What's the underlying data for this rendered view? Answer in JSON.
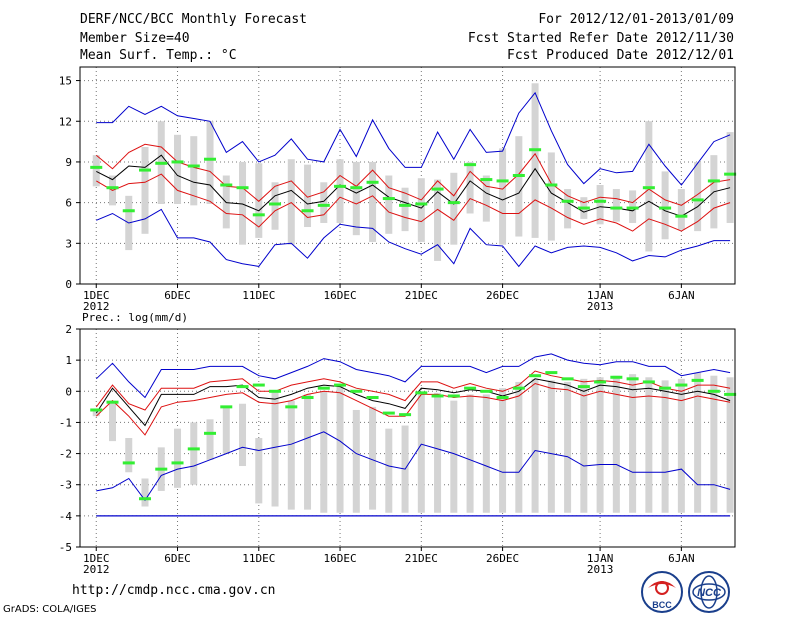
{
  "header": {
    "title": "DERF/NCC/BCC Monthly Forecast",
    "member_size": "Member Size=40",
    "variable": "Mean Surf. Temp.: °C",
    "period": "For 2012/12/01-2013/01/09",
    "started": "Fcst Started Refer Date 2012/11/30",
    "produced": "Fcst Produced Date 2012/12/01"
  },
  "footer": {
    "url": "http://cmdp.ncc.cma.gov.cn",
    "credit": "GrADS: COLA/IGES",
    "logo_bcc": "BCC",
    "logo_ncc": "NCC"
  },
  "colors": {
    "box": "#d4d4d4",
    "median": "#000000",
    "quartile": "#dd1111",
    "extreme": "#0000cc",
    "obs": "#33ee33",
    "grid": "#777777"
  },
  "chart_data": [
    {
      "type": "line",
      "title": "Mean Surf. Temp.: °C",
      "ylim": [
        0,
        16
      ],
      "yticks": [
        0,
        3,
        6,
        9,
        12,
        15
      ],
      "xticks": [
        {
          "day": 1,
          "label": "1DEC",
          "sub": "2012"
        },
        {
          "day": 6,
          "label": "6DEC",
          "sub": ""
        },
        {
          "day": 11,
          "label": "11DEC",
          "sub": ""
        },
        {
          "day": 16,
          "label": "16DEC",
          "sub": ""
        },
        {
          "day": 21,
          "label": "21DEC",
          "sub": ""
        },
        {
          "day": 26,
          "label": "26DEC",
          "sub": ""
        },
        {
          "day": 32,
          "label": "1JAN",
          "sub": "2013"
        },
        {
          "day": 37,
          "label": "6JAN",
          "sub": ""
        }
      ],
      "days": [
        1,
        2,
        3,
        4,
        5,
        6,
        7,
        8,
        9,
        10,
        11,
        12,
        13,
        14,
        15,
        16,
        17,
        18,
        19,
        20,
        21,
        22,
        23,
        24,
        25,
        26,
        27,
        28,
        29,
        30,
        31,
        32,
        33,
        34,
        35,
        36,
        37,
        38,
        39,
        40
      ],
      "max": [
        11.9,
        11.9,
        13.1,
        12.5,
        13.1,
        12.4,
        12.2,
        12.0,
        9.7,
        10.5,
        9.0,
        9.5,
        10.7,
        9.2,
        9.0,
        11.4,
        9.4,
        12.1,
        10.0,
        8.6,
        8.6,
        11.2,
        9.2,
        11.4,
        9.7,
        9.8,
        12.6,
        14.1,
        11.3,
        8.8,
        7.4,
        8.5,
        8.2,
        8.3,
        10.3,
        8.7,
        7.3,
        8.9,
        10.5,
        11.0
      ],
      "upper": [
        9.5,
        8.5,
        9.7,
        10.3,
        10.1,
        9.0,
        8.6,
        8.3,
        7.2,
        7.1,
        6.1,
        7.2,
        7.6,
        6.4,
        6.8,
        8.0,
        7.2,
        8.4,
        7.1,
        6.7,
        6.2,
        7.6,
        6.5,
        8.3,
        7.2,
        7.0,
        8.1,
        9.6,
        7.4,
        6.5,
        6.0,
        6.4,
        6.3,
        6.0,
        7.0,
        6.2,
        5.8,
        6.6,
        7.5,
        7.7
      ],
      "median": [
        8.3,
        7.7,
        8.7,
        8.6,
        9.5,
        8.0,
        7.5,
        7.3,
        6.0,
        5.9,
        5.4,
        6.5,
        6.9,
        5.9,
        6.1,
        7.3,
        6.7,
        7.3,
        6.4,
        6.0,
        5.6,
        6.8,
        5.9,
        7.6,
        6.7,
        6.2,
        6.7,
        8.5,
        6.7,
        6.0,
        5.3,
        5.7,
        5.6,
        5.4,
        6.1,
        5.4,
        5.0,
        5.7,
        6.8,
        7.1
      ],
      "lower": [
        7.6,
        6.9,
        7.4,
        7.5,
        8.1,
        6.9,
        6.5,
        6.1,
        5.2,
        5.1,
        4.2,
        5.4,
        6.0,
        4.9,
        5.1,
        6.4,
        5.9,
        6.5,
        5.3,
        4.9,
        4.6,
        5.5,
        4.7,
        6.3,
        5.8,
        5.2,
        5.2,
        6.2,
        5.6,
        4.9,
        4.4,
        4.8,
        4.5,
        3.9,
        4.8,
        4.4,
        3.9,
        4.6,
        5.6,
        6.0
      ],
      "min": [
        4.7,
        5.2,
        4.5,
        4.8,
        5.5,
        3.4,
        3.4,
        3.1,
        1.8,
        1.5,
        1.3,
        2.9,
        3.0,
        1.9,
        3.4,
        4.4,
        4.2,
        4.1,
        3.1,
        2.6,
        2.2,
        2.9,
        1.5,
        4.1,
        2.9,
        2.8,
        1.3,
        2.8,
        2.3,
        2.7,
        2.8,
        2.7,
        2.3,
        1.7,
        2.1,
        2.0,
        2.5,
        2.8,
        3.2,
        3.2
      ],
      "box_top": [
        9.5,
        8.0,
        6.5,
        10.1,
        12.0,
        11.0,
        10.9,
        12.0,
        8.0,
        9.0,
        8.9,
        7.5,
        9.2,
        8.8,
        7.5,
        9.2,
        9.0,
        9.0,
        8.0,
        7.1,
        7.8,
        7.7,
        8.2,
        9.0,
        8.0,
        10.0,
        10.9,
        14.8,
        9.7,
        7.0,
        6.4,
        7.3,
        7.0,
        6.9,
        12.0,
        8.3,
        7.0,
        9.0,
        9.5,
        11.2
      ],
      "box_bottom": [
        7.2,
        5.8,
        2.5,
        3.7,
        5.9,
        5.9,
        5.8,
        5.9,
        4.1,
        2.9,
        3.4,
        4.0,
        2.9,
        4.2,
        4.5,
        4.5,
        3.6,
        3.1,
        3.7,
        3.9,
        3.1,
        1.7,
        2.9,
        5.2,
        4.6,
        2.9,
        3.5,
        3.4,
        3.2,
        4.1,
        4.8,
        4.4,
        4.6,
        4.5,
        2.4,
        3.3,
        4.0,
        3.9,
        4.1,
        4.5
      ],
      "obs": [
        8.6,
        7.1,
        5.4,
        8.4,
        8.9,
        9.0,
        8.7,
        9.2,
        7.3,
        7.1,
        5.1,
        5.9,
        null,
        5.4,
        5.8,
        7.2,
        7.1,
        7.5,
        6.3,
        5.8,
        5.9,
        7.0,
        6.0,
        8.8,
        7.7,
        7.6,
        8.0,
        9.9,
        7.3,
        6.1,
        5.6,
        6.1,
        5.6,
        5.6,
        7.1,
        5.6,
        5.0,
        6.2,
        7.6,
        8.1
      ]
    },
    {
      "type": "line",
      "title": "Prec.: log(mm/d)",
      "ylim": [
        -5,
        2
      ],
      "yticks": [
        -5,
        -4,
        -3,
        -2,
        -1,
        0,
        1,
        2
      ],
      "xticks": [
        {
          "day": 1,
          "label": "1DEC",
          "sub": "2012"
        },
        {
          "day": 6,
          "label": "6DEC",
          "sub": ""
        },
        {
          "day": 11,
          "label": "11DEC",
          "sub": ""
        },
        {
          "day": 16,
          "label": "16DEC",
          "sub": ""
        },
        {
          "day": 21,
          "label": "21DEC",
          "sub": ""
        },
        {
          "day": 26,
          "label": "26DEC",
          "sub": ""
        },
        {
          "day": 32,
          "label": "1JAN",
          "sub": "2013"
        },
        {
          "day": 37,
          "label": "6JAN",
          "sub": ""
        }
      ],
      "days": [
        1,
        2,
        3,
        4,
        5,
        6,
        7,
        8,
        9,
        10,
        11,
        12,
        13,
        14,
        15,
        16,
        17,
        18,
        19,
        20,
        21,
        22,
        23,
        24,
        25,
        26,
        27,
        28,
        29,
        30,
        31,
        32,
        33,
        34,
        35,
        36,
        37,
        38,
        39,
        40
      ],
      "max": [
        0.4,
        0.9,
        0.3,
        -0.2,
        0.7,
        0.7,
        0.7,
        0.8,
        0.8,
        0.8,
        0.5,
        0.4,
        0.6,
        0.8,
        1.05,
        0.95,
        0.7,
        0.6,
        0.5,
        0.3,
        0.8,
        0.8,
        0.8,
        0.8,
        0.6,
        0.8,
        0.8,
        1.1,
        1.2,
        1.0,
        0.9,
        0.85,
        0.95,
        0.95,
        0.8,
        0.8,
        0.5,
        0.6,
        0.7,
        0.6
      ],
      "upper": [
        -0.5,
        0.2,
        -0.4,
        -0.6,
        0.1,
        0.1,
        0.1,
        0.3,
        0.35,
        0.4,
        0.0,
        0.0,
        0.2,
        0.3,
        0.4,
        0.3,
        0.1,
        0.0,
        -0.1,
        -0.3,
        0.3,
        0.3,
        0.1,
        0.25,
        0.1,
        0.0,
        0.2,
        0.65,
        0.5,
        0.4,
        0.3,
        0.35,
        0.3,
        0.2,
        0.3,
        0.1,
        0.0,
        0.2,
        0.2,
        0.1
      ],
      "median": [
        -0.7,
        0.1,
        -0.5,
        -1.1,
        -0.1,
        -0.1,
        -0.1,
        0.15,
        0.15,
        0.2,
        -0.2,
        -0.25,
        -0.1,
        0.1,
        0.2,
        0.15,
        -0.1,
        -0.3,
        -0.4,
        -0.55,
        0.1,
        0.05,
        -0.05,
        0.05,
        0.0,
        -0.15,
        0.0,
        0.4,
        0.3,
        0.2,
        0.0,
        0.2,
        0.15,
        0.05,
        0.1,
        0.0,
        -0.1,
        0.0,
        -0.1,
        -0.3
      ],
      "lower": [
        -0.8,
        -0.3,
        -0.8,
        -1.4,
        -0.5,
        -0.35,
        -0.3,
        -0.2,
        -0.1,
        -0.05,
        -0.35,
        -0.4,
        -0.3,
        -0.1,
        0.0,
        -0.05,
        -0.3,
        -0.55,
        -0.8,
        -0.8,
        -0.1,
        -0.1,
        -0.2,
        -0.15,
        -0.2,
        -0.3,
        -0.15,
        0.25,
        0.1,
        0.05,
        -0.15,
        0.0,
        -0.1,
        -0.2,
        -0.15,
        -0.2,
        -0.3,
        -0.15,
        -0.25,
        -0.35
      ],
      "min": [
        -3.2,
        -3.1,
        -2.8,
        -3.5,
        -2.7,
        -2.5,
        -2.4,
        -2.2,
        -2.0,
        -1.8,
        -1.9,
        -1.8,
        -1.7,
        -1.5,
        -1.3,
        -1.6,
        -2.0,
        -2.2,
        -2.4,
        -2.5,
        -1.7,
        -1.85,
        -2.0,
        -2.2,
        -2.4,
        -2.6,
        -2.6,
        -1.9,
        -2.0,
        -2.1,
        -2.4,
        -2.35,
        -2.35,
        -2.6,
        -2.6,
        -2.6,
        -2.5,
        -3.0,
        -3.0,
        -3.15
      ],
      "box_top": [
        -0.6,
        -0.3,
        -1.5,
        -2.8,
        -1.8,
        -1.2,
        -1.0,
        -0.9,
        -0.5,
        -0.4,
        -1.5,
        0.0,
        -0.3,
        -0.1,
        0.0,
        0.2,
        -0.6,
        -0.5,
        -1.2,
        -1.1,
        -0.1,
        -0.05,
        -0.3,
        -0.1,
        -0.1,
        0.1,
        0.3,
        0.4,
        0.35,
        0.3,
        0.4,
        0.45,
        0.5,
        0.55,
        0.45,
        0.35,
        0.4,
        0.6,
        0.5,
        0.45
      ],
      "box_bottom": [
        -0.8,
        -1.6,
        -2.6,
        -3.7,
        -3.2,
        -3.1,
        -3.0,
        -2.2,
        -2.0,
        -2.4,
        -3.6,
        -3.7,
        -3.8,
        -3.8,
        -3.9,
        -3.9,
        -3.9,
        -3.8,
        -3.9,
        -3.9,
        -3.9,
        -3.9,
        -3.9,
        -3.9,
        -3.9,
        -3.9,
        -3.9,
        -3.9,
        -3.9,
        -3.9,
        -3.9,
        -3.9,
        -3.9,
        -3.9,
        -3.9,
        -3.9,
        -3.9,
        -3.9,
        -3.9,
        -3.9
      ],
      "obs": [
        -0.6,
        -0.35,
        -2.3,
        -3.45,
        -2.5,
        -2.3,
        -1.85,
        -1.35,
        -0.5,
        0.15,
        0.2,
        0.0,
        -0.5,
        -0.2,
        0.1,
        0.2,
        0.0,
        -0.2,
        -0.7,
        -0.75,
        -0.05,
        -0.15,
        -0.15,
        0.1,
        0.0,
        -0.2,
        0.1,
        0.5,
        0.6,
        0.4,
        0.15,
        0.3,
        0.45,
        0.4,
        0.3,
        0.1,
        0.2,
        0.35,
        0.0,
        -0.1
      ],
      "baseline": -4
    }
  ]
}
